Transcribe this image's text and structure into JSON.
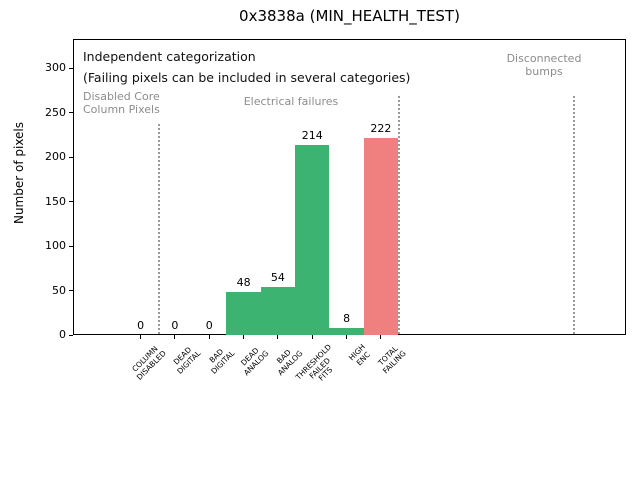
{
  "chart_data": {
    "type": "bar",
    "title": "0x3838a (MIN_HEALTH_TEST)",
    "ylabel": "Number of pixels",
    "xlabel": "",
    "ylim": [
      0,
      333
    ],
    "yticks": [
      0,
      50,
      100,
      150,
      200,
      250,
      300
    ],
    "grid": "off",
    "legend": "none",
    "categories": [
      "COLUMN\nDISABLED",
      "DEAD\nDIGITAL",
      "BAD\nDIGITAL",
      "DEAD\nANALOG",
      "BAD\nANALOG",
      "THRESHOLD\nFAILED\nFITS",
      "HIGH\nENC",
      "TOTAL\nFAILING"
    ],
    "values": [
      0,
      0,
      0,
      48,
      54,
      214,
      8,
      222
    ],
    "bar_value_labels": [
      "0",
      "0",
      "0",
      "48",
      "54",
      "214",
      "8",
      "222"
    ],
    "bar_colors": [
      "#3cb371",
      "#3cb371",
      "#3cb371",
      "#3cb371",
      "#3cb371",
      "#3cb371",
      "#3cb371",
      "#f08080"
    ],
    "bar_width": 1.0,
    "separators_at_category_index": [
      0.5,
      7.5,
      12.6
    ],
    "annotations": {
      "note_line1": "Independent categorization",
      "note_line2": "(Failing pixels can be included in several categories)",
      "section_disabled": "Disabled Core\nColumn Pixels",
      "section_electrical": "Electrical failures",
      "section_disconnected": "Disconnected\nbumps"
    },
    "colors": {
      "bar_green": "#3cb371",
      "bar_red": "#f08080",
      "section_text_gray": "#8c8c8c",
      "separator_gray": "#999999",
      "axis_black": "#000000"
    }
  }
}
